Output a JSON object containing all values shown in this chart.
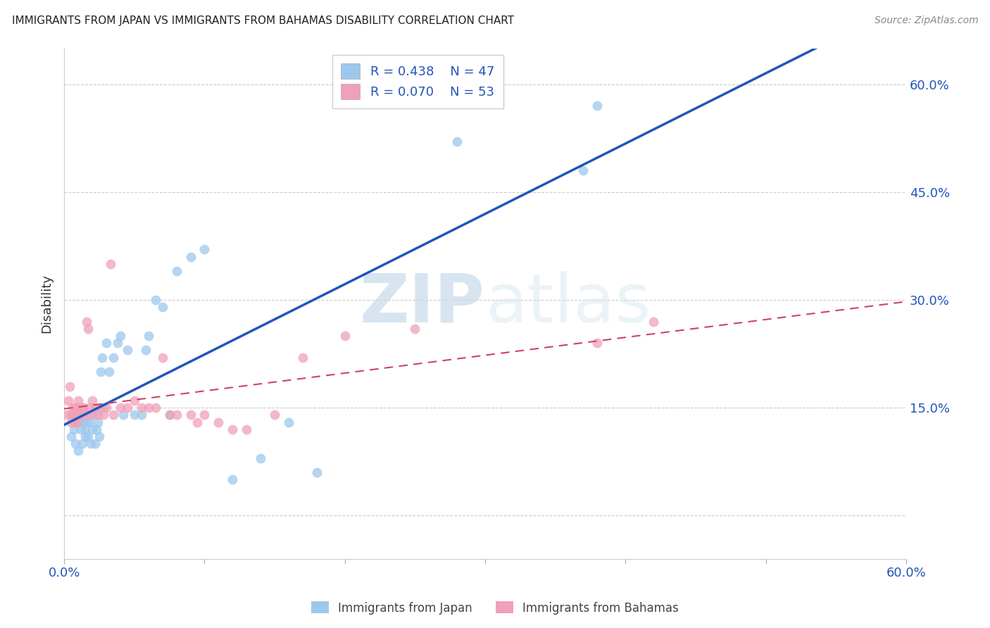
{
  "title": "IMMIGRANTS FROM JAPAN VS IMMIGRANTS FROM BAHAMAS DISABILITY CORRELATION CHART",
  "source": "Source: ZipAtlas.com",
  "ylabel": "Disability",
  "y_ticks": [
    0.0,
    0.15,
    0.3,
    0.45,
    0.6
  ],
  "y_tick_labels": [
    "",
    "15.0%",
    "30.0%",
    "45.0%",
    "60.0%"
  ],
  "x_min": 0.0,
  "x_max": 0.6,
  "y_min": -0.06,
  "y_max": 0.65,
  "japan_color": "#9DC8ED",
  "bahamas_color": "#F0A0B8",
  "japan_line_color": "#2255BB",
  "bahamas_line_color": "#CC4466",
  "japan_R": 0.438,
  "japan_N": 47,
  "bahamas_R": 0.07,
  "bahamas_N": 53,
  "watermark_zip": "ZIP",
  "watermark_atlas": "atlas",
  "japan_x": [
    0.005,
    0.007,
    0.008,
    0.01,
    0.01,
    0.012,
    0.013,
    0.014,
    0.015,
    0.015,
    0.016,
    0.017,
    0.018,
    0.019,
    0.02,
    0.021,
    0.022,
    0.023,
    0.024,
    0.025,
    0.026,
    0.027,
    0.028,
    0.03,
    0.032,
    0.035,
    0.038,
    0.04,
    0.042,
    0.045,
    0.05,
    0.055,
    0.058,
    0.06,
    0.065,
    0.07,
    0.075,
    0.08,
    0.09,
    0.1,
    0.12,
    0.14,
    0.16,
    0.18,
    0.28,
    0.37,
    0.38
  ],
  "japan_y": [
    0.11,
    0.12,
    0.1,
    0.13,
    0.09,
    0.12,
    0.1,
    0.13,
    0.11,
    0.12,
    0.13,
    0.11,
    0.13,
    0.1,
    0.12,
    0.14,
    0.1,
    0.12,
    0.13,
    0.11,
    0.2,
    0.22,
    0.15,
    0.24,
    0.2,
    0.22,
    0.24,
    0.25,
    0.14,
    0.23,
    0.14,
    0.14,
    0.23,
    0.25,
    0.3,
    0.29,
    0.14,
    0.34,
    0.36,
    0.37,
    0.05,
    0.08,
    0.13,
    0.06,
    0.52,
    0.48,
    0.57
  ],
  "bahamas_x": [
    0.002,
    0.003,
    0.004,
    0.005,
    0.005,
    0.006,
    0.006,
    0.007,
    0.007,
    0.008,
    0.008,
    0.009,
    0.009,
    0.01,
    0.01,
    0.011,
    0.012,
    0.013,
    0.014,
    0.015,
    0.016,
    0.017,
    0.018,
    0.019,
    0.02,
    0.022,
    0.024,
    0.026,
    0.028,
    0.03,
    0.033,
    0.035,
    0.04,
    0.045,
    0.05,
    0.055,
    0.06,
    0.065,
    0.07,
    0.075,
    0.08,
    0.09,
    0.095,
    0.1,
    0.11,
    0.12,
    0.13,
    0.15,
    0.17,
    0.2,
    0.25,
    0.38,
    0.42
  ],
  "bahamas_y": [
    0.14,
    0.16,
    0.18,
    0.13,
    0.14,
    0.15,
    0.14,
    0.13,
    0.14,
    0.15,
    0.14,
    0.13,
    0.14,
    0.15,
    0.16,
    0.14,
    0.15,
    0.14,
    0.15,
    0.14,
    0.27,
    0.26,
    0.15,
    0.14,
    0.16,
    0.15,
    0.14,
    0.15,
    0.14,
    0.15,
    0.35,
    0.14,
    0.15,
    0.15,
    0.16,
    0.15,
    0.15,
    0.15,
    0.22,
    0.14,
    0.14,
    0.14,
    0.13,
    0.14,
    0.13,
    0.12,
    0.12,
    0.14,
    0.22,
    0.25,
    0.26,
    0.24,
    0.27
  ]
}
